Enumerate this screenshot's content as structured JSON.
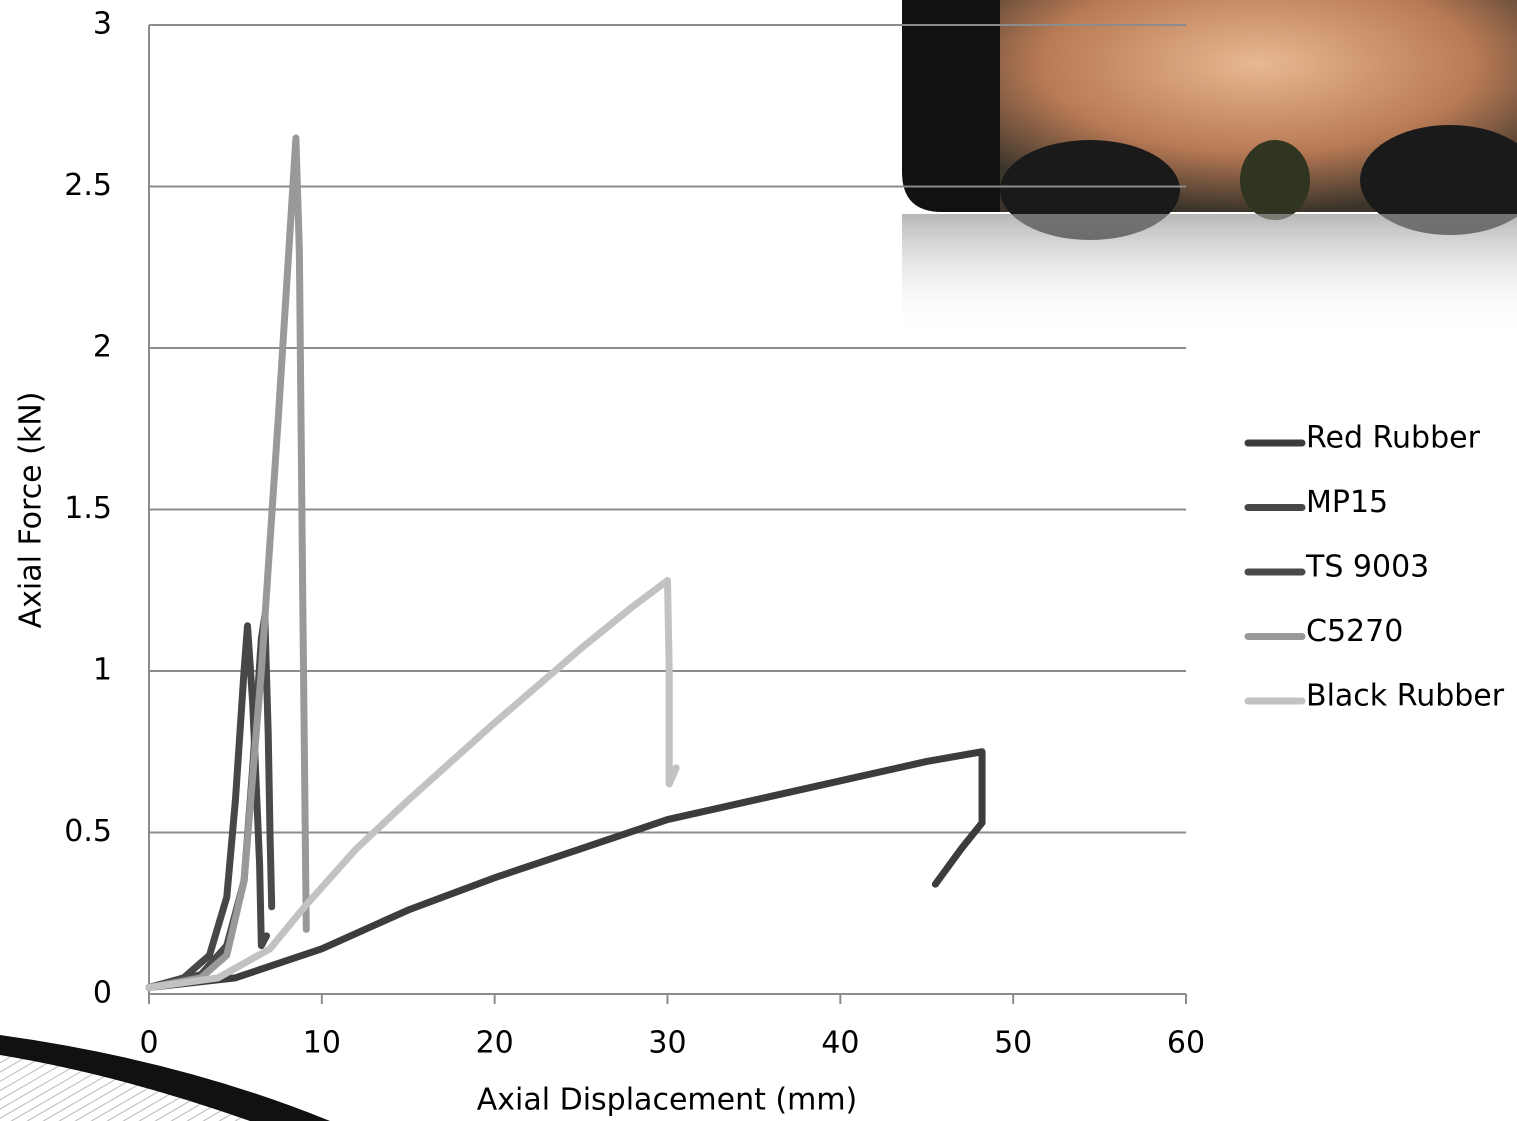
{
  "chart_data": {
    "type": "line",
    "xlabel": "Axial Displacement (mm)",
    "ylabel": "Axial Force (kN)",
    "xlim": [
      0,
      60
    ],
    "xticks": [
      0,
      10,
      20,
      30,
      40,
      50,
      60
    ],
    "ylim": [
      0,
      3
    ],
    "yticks": [
      0,
      0.5,
      1,
      1.5,
      2,
      2.5,
      3
    ],
    "grid": true,
    "legend": "right",
    "series": [
      {
        "name": "Red Rubber",
        "color": "#3c3c3c",
        "x": [
          0,
          5,
          10,
          15,
          20,
          25,
          30,
          35,
          40,
          45,
          48.2,
          48.2,
          47,
          45.5
        ],
        "values": [
          0.02,
          0.05,
          0.14,
          0.26,
          0.36,
          0.45,
          0.54,
          0.6,
          0.66,
          0.72,
          0.75,
          0.53,
          0.45,
          0.34
        ]
      },
      {
        "name": "MP15",
        "color": "#474747",
        "x": [
          0,
          2,
          3.5,
          4.5,
          5,
          5.5,
          5.7,
          6,
          6.2,
          6.4,
          6.5,
          6.8
        ],
        "values": [
          0.02,
          0.05,
          0.12,
          0.3,
          0.6,
          1.0,
          1.14,
          0.9,
          0.65,
          0.4,
          0.15,
          0.18
        ]
      },
      {
        "name": "TS 9003",
        "color": "#4a4a4a",
        "x": [
          0,
          3,
          4.5,
          5.5,
          6,
          6.5,
          6.7,
          6.9,
          7.0,
          7.1
        ],
        "values": [
          0.02,
          0.06,
          0.15,
          0.35,
          0.7,
          1.1,
          1.17,
          0.8,
          0.5,
          0.27
        ]
      },
      {
        "name": "C5270",
        "color": "#999999",
        "x": [
          0,
          3,
          4.5,
          5.5,
          6.5,
          7.5,
          8.5,
          8.7,
          8.9,
          9.0,
          9.1
        ],
        "values": [
          0.02,
          0.05,
          0.12,
          0.35,
          1.0,
          1.8,
          2.65,
          2.3,
          1.2,
          0.7,
          0.2
        ]
      },
      {
        "name": "Black Rubber",
        "color": "#c2c2c2",
        "x": [
          0,
          4,
          7,
          9,
          12,
          15,
          20,
          25,
          28,
          30,
          30.1,
          30.1,
          30.5
        ],
        "values": [
          0.02,
          0.05,
          0.14,
          0.27,
          0.45,
          0.6,
          0.84,
          1.07,
          1.2,
          1.28,
          1.0,
          0.65,
          0.7
        ]
      }
    ]
  }
}
